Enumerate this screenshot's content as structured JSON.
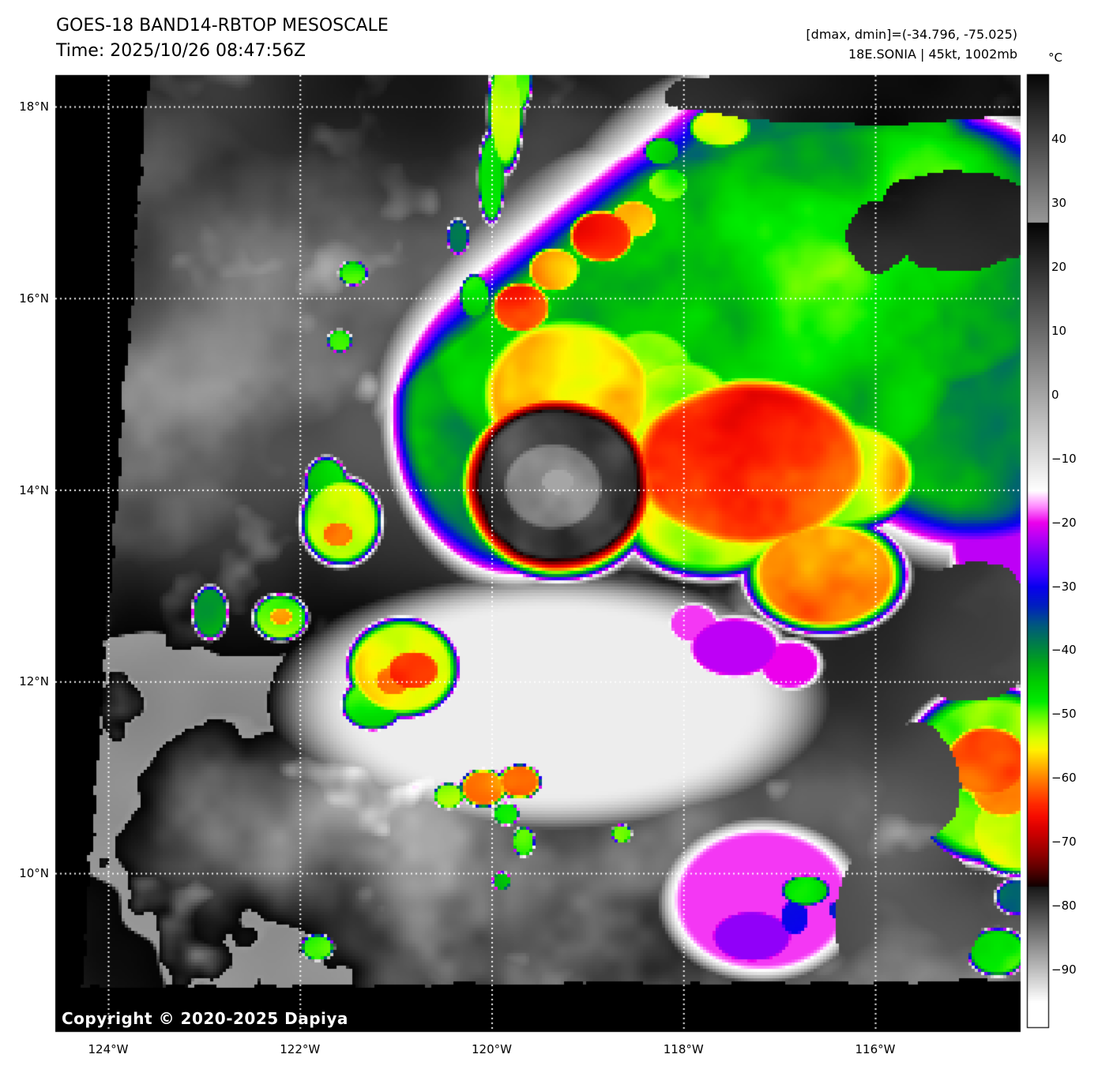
{
  "header": {
    "title_line1": "GOES-18 BAND14-RBTOP MESOSCALE",
    "title_line2": "Time: 2025/10/26 08:47:56Z",
    "stats_line1": "[dmax, dmin]=(-34.796, -75.025)",
    "stats_line2": "18E.SONIA | 45kt, 1002mb"
  },
  "colorbar": {
    "unit": "°C",
    "ticks": [
      {
        "label": "40",
        "value": 40
      },
      {
        "label": "30",
        "value": 30
      },
      {
        "label": "20",
        "value": 20
      },
      {
        "label": "10",
        "value": 10
      },
      {
        "label": "0",
        "value": 0
      },
      {
        "label": "−10",
        "value": -10
      },
      {
        "label": "−20",
        "value": -20
      },
      {
        "label": "−30",
        "value": -30
      },
      {
        "label": "−40",
        "value": -40
      },
      {
        "label": "−50",
        "value": -50
      },
      {
        "label": "−60",
        "value": -60
      },
      {
        "label": "−70",
        "value": -70
      },
      {
        "label": "−80",
        "value": -80
      },
      {
        "label": "−90",
        "value": -90
      }
    ]
  },
  "map": {
    "copyright": "Copyright © 2020-2025 Dapiya",
    "lat_labels": [
      {
        "label": "18°N",
        "deg": 18
      },
      {
        "label": "16°N",
        "deg": 16
      },
      {
        "label": "14°N",
        "deg": 14
      },
      {
        "label": "12°N",
        "deg": 12
      },
      {
        "label": "10°N",
        "deg": 10
      }
    ],
    "lon_labels": [
      {
        "label": "124°W",
        "deg": 124
      },
      {
        "label": "122°W",
        "deg": 122
      },
      {
        "label": "120°W",
        "deg": 120
      },
      {
        "label": "118°W",
        "deg": 118
      },
      {
        "label": "116°W",
        "deg": 116
      }
    ]
  }
}
